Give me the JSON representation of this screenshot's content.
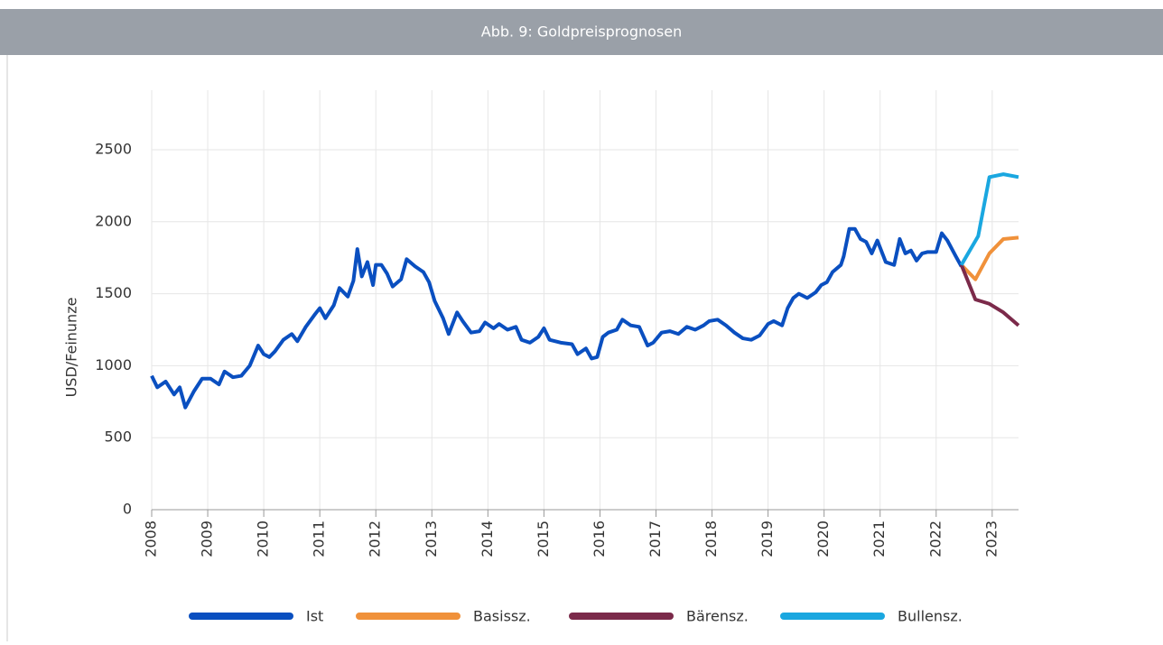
{
  "chart_data": {
    "type": "line",
    "title": "Abb. 9: Goldpreisprognosen",
    "ylabel": "USD/Feinunze",
    "xlim": [
      2008,
      2023.47
    ],
    "xticks": [
      2008,
      2009,
      2010,
      2011,
      2012,
      2013,
      2014,
      2015,
      2016,
      2017,
      2018,
      2019,
      2020,
      2021,
      2022,
      2023
    ],
    "ylim": [
      0,
      2500
    ],
    "yticks": [
      0,
      500,
      1000,
      1500,
      2000,
      2500
    ],
    "grid": true,
    "legend": "bottom",
    "series": [
      {
        "name": "Ist",
        "color": "#0a4fc0",
        "x": [
          2008.0,
          2008.1,
          2008.25,
          2008.4,
          2008.5,
          2008.6,
          2008.75,
          2008.9,
          2009.05,
          2009.2,
          2009.3,
          2009.45,
          2009.6,
          2009.75,
          2009.9,
          2010.0,
          2010.1,
          2010.2,
          2010.35,
          2010.5,
          2010.6,
          2010.75,
          2010.9,
          2011.0,
          2011.1,
          2011.25,
          2011.35,
          2011.5,
          2011.6,
          2011.67,
          2011.75,
          2011.85,
          2011.95,
          2012.0,
          2012.1,
          2012.2,
          2012.3,
          2012.45,
          2012.55,
          2012.7,
          2012.85,
          2012.95,
          2013.05,
          2013.2,
          2013.3,
          2013.45,
          2013.55,
          2013.7,
          2013.85,
          2013.95,
          2014.1,
          2014.2,
          2014.35,
          2014.5,
          2014.6,
          2014.75,
          2014.9,
          2015.0,
          2015.1,
          2015.3,
          2015.5,
          2015.6,
          2015.75,
          2015.85,
          2015.95,
          2016.05,
          2016.15,
          2016.3,
          2016.4,
          2016.55,
          2016.7,
          2016.85,
          2016.95,
          2017.1,
          2017.25,
          2017.4,
          2017.55,
          2017.7,
          2017.85,
          2017.95,
          2018.1,
          2018.25,
          2018.4,
          2018.55,
          2018.7,
          2018.85,
          2019.0,
          2019.1,
          2019.25,
          2019.35,
          2019.45,
          2019.55,
          2019.7,
          2019.85,
          2019.95,
          2020.05,
          2020.15,
          2020.3,
          2020.35,
          2020.45,
          2020.55,
          2020.65,
          2020.75,
          2020.85,
          2020.95,
          2021.1,
          2021.25,
          2021.35,
          2021.45,
          2021.55,
          2021.65,
          2021.75,
          2021.85,
          2022.0,
          2022.1,
          2022.2,
          2022.35,
          2022.45
        ],
        "values": [
          930,
          850,
          890,
          800,
          850,
          710,
          820,
          910,
          910,
          870,
          960,
          920,
          930,
          1000,
          1140,
          1080,
          1060,
          1100,
          1180,
          1220,
          1170,
          1270,
          1350,
          1400,
          1330,
          1420,
          1540,
          1480,
          1590,
          1810,
          1620,
          1720,
          1560,
          1700,
          1700,
          1640,
          1550,
          1600,
          1740,
          1690,
          1650,
          1580,
          1450,
          1330,
          1220,
          1370,
          1310,
          1230,
          1240,
          1300,
          1260,
          1290,
          1250,
          1270,
          1180,
          1160,
          1200,
          1260,
          1180,
          1160,
          1150,
          1080,
          1120,
          1050,
          1060,
          1200,
          1230,
          1250,
          1320,
          1280,
          1270,
          1140,
          1160,
          1230,
          1240,
          1220,
          1270,
          1250,
          1280,
          1310,
          1320,
          1280,
          1230,
          1190,
          1180,
          1210,
          1290,
          1310,
          1280,
          1400,
          1470,
          1500,
          1470,
          1510,
          1560,
          1580,
          1650,
          1700,
          1760,
          1950,
          1950,
          1880,
          1860,
          1780,
          1870,
          1720,
          1700,
          1880,
          1780,
          1800,
          1730,
          1780,
          1790,
          1790,
          1920,
          1870,
          1760,
          1690
        ]
      },
      {
        "name": "Basissz.",
        "color": "#f0913a",
        "x": [
          2022.45,
          2022.7,
          2022.95,
          2023.2,
          2023.47
        ],
        "values": [
          1700,
          1600,
          1780,
          1880,
          1890
        ]
      },
      {
        "name": "Bärensz.",
        "color": "#7b2a4a",
        "x": [
          2022.45,
          2022.7,
          2022.95,
          2023.2,
          2023.47
        ],
        "values": [
          1700,
          1460,
          1430,
          1370,
          1280
        ]
      },
      {
        "name": "Bullensz.",
        "color": "#1aa7e0",
        "x": [
          2022.45,
          2022.75,
          2022.95,
          2023.2,
          2023.47
        ],
        "values": [
          1700,
          1900,
          2310,
          2330,
          2310
        ]
      }
    ]
  }
}
